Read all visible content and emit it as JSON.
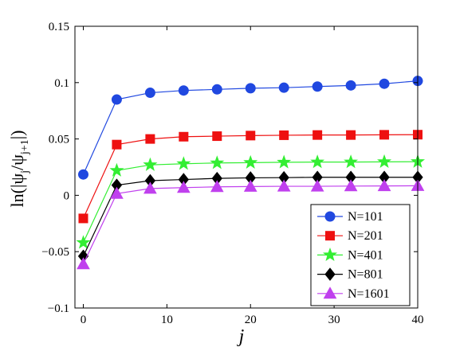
{
  "chart_data": {
    "type": "line",
    "xlabel": "j",
    "ylabel": "ln(|ψ_j/ψ_j+1|)",
    "xlim": [
      -1,
      40
    ],
    "ylim": [
      -0.1,
      0.15
    ],
    "x_ticks": [
      "0",
      "10",
      "20",
      "30",
      "40"
    ],
    "y_ticks": [
      "−0.1",
      "−0.05",
      "0",
      "0.05",
      "0.1",
      "0.15"
    ],
    "legend_position": "bottom-right",
    "grid": false,
    "x": [
      0,
      4,
      8,
      12,
      16,
      20,
      24,
      28,
      32,
      36,
      40
    ],
    "series": [
      {
        "name": "N=101",
        "color": "#2048e0",
        "marker": "circle",
        "values": [
          0.0185,
          0.085,
          0.091,
          0.093,
          0.094,
          0.095,
          0.0955,
          0.0965,
          0.0975,
          0.099,
          0.1015
        ]
      },
      {
        "name": "N=201",
        "color": "#ee1010",
        "marker": "square",
        "values": [
          -0.0205,
          0.045,
          0.05,
          0.052,
          0.0525,
          0.053,
          0.0533,
          0.0535,
          0.0535,
          0.0537,
          0.0538
        ]
      },
      {
        "name": "N=401",
        "color": "#33ee33",
        "marker": "star",
        "values": [
          -0.042,
          0.022,
          0.027,
          0.028,
          0.0287,
          0.029,
          0.0293,
          0.0295,
          0.0295,
          0.0297,
          0.0298
        ]
      },
      {
        "name": "N=801",
        "color": "#000000",
        "marker": "diamond",
        "values": [
          -0.054,
          0.009,
          0.013,
          0.014,
          0.015,
          0.0155,
          0.0157,
          0.016,
          0.016,
          0.016,
          0.016
        ]
      },
      {
        "name": "N=1601",
        "color": "#c040ee",
        "marker": "triangle",
        "values": [
          -0.061,
          0.0015,
          0.006,
          0.0068,
          0.0075,
          0.0078,
          0.008,
          0.008,
          0.0082,
          0.0083,
          0.0085
        ]
      }
    ]
  }
}
